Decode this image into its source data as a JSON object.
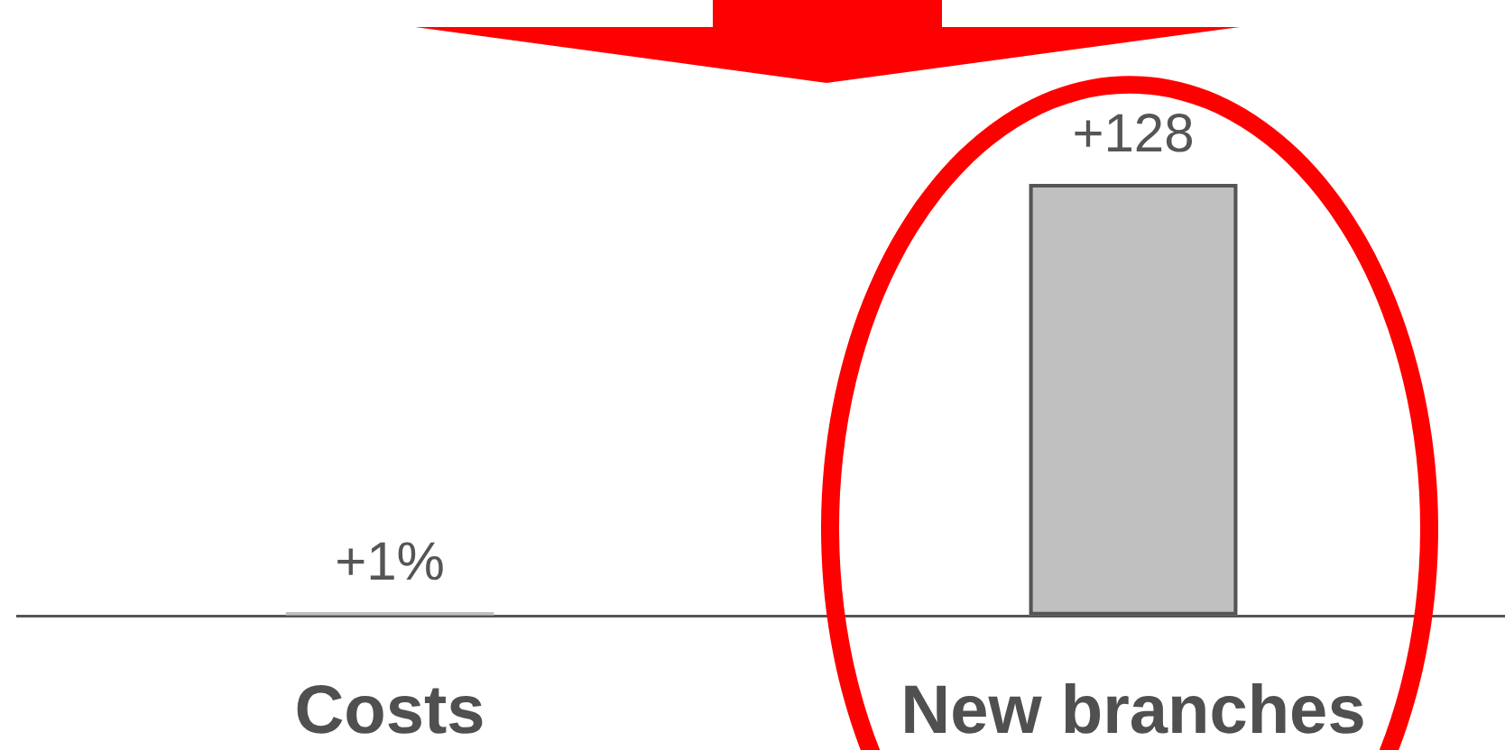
{
  "chart_data": {
    "type": "bar",
    "categories": [
      "Costs",
      "New branches"
    ],
    "values": [
      1,
      128
    ],
    "value_labels": [
      "+1%",
      "+128"
    ],
    "color": "#c0c0c0",
    "tick_labels": "x"
  }
}
